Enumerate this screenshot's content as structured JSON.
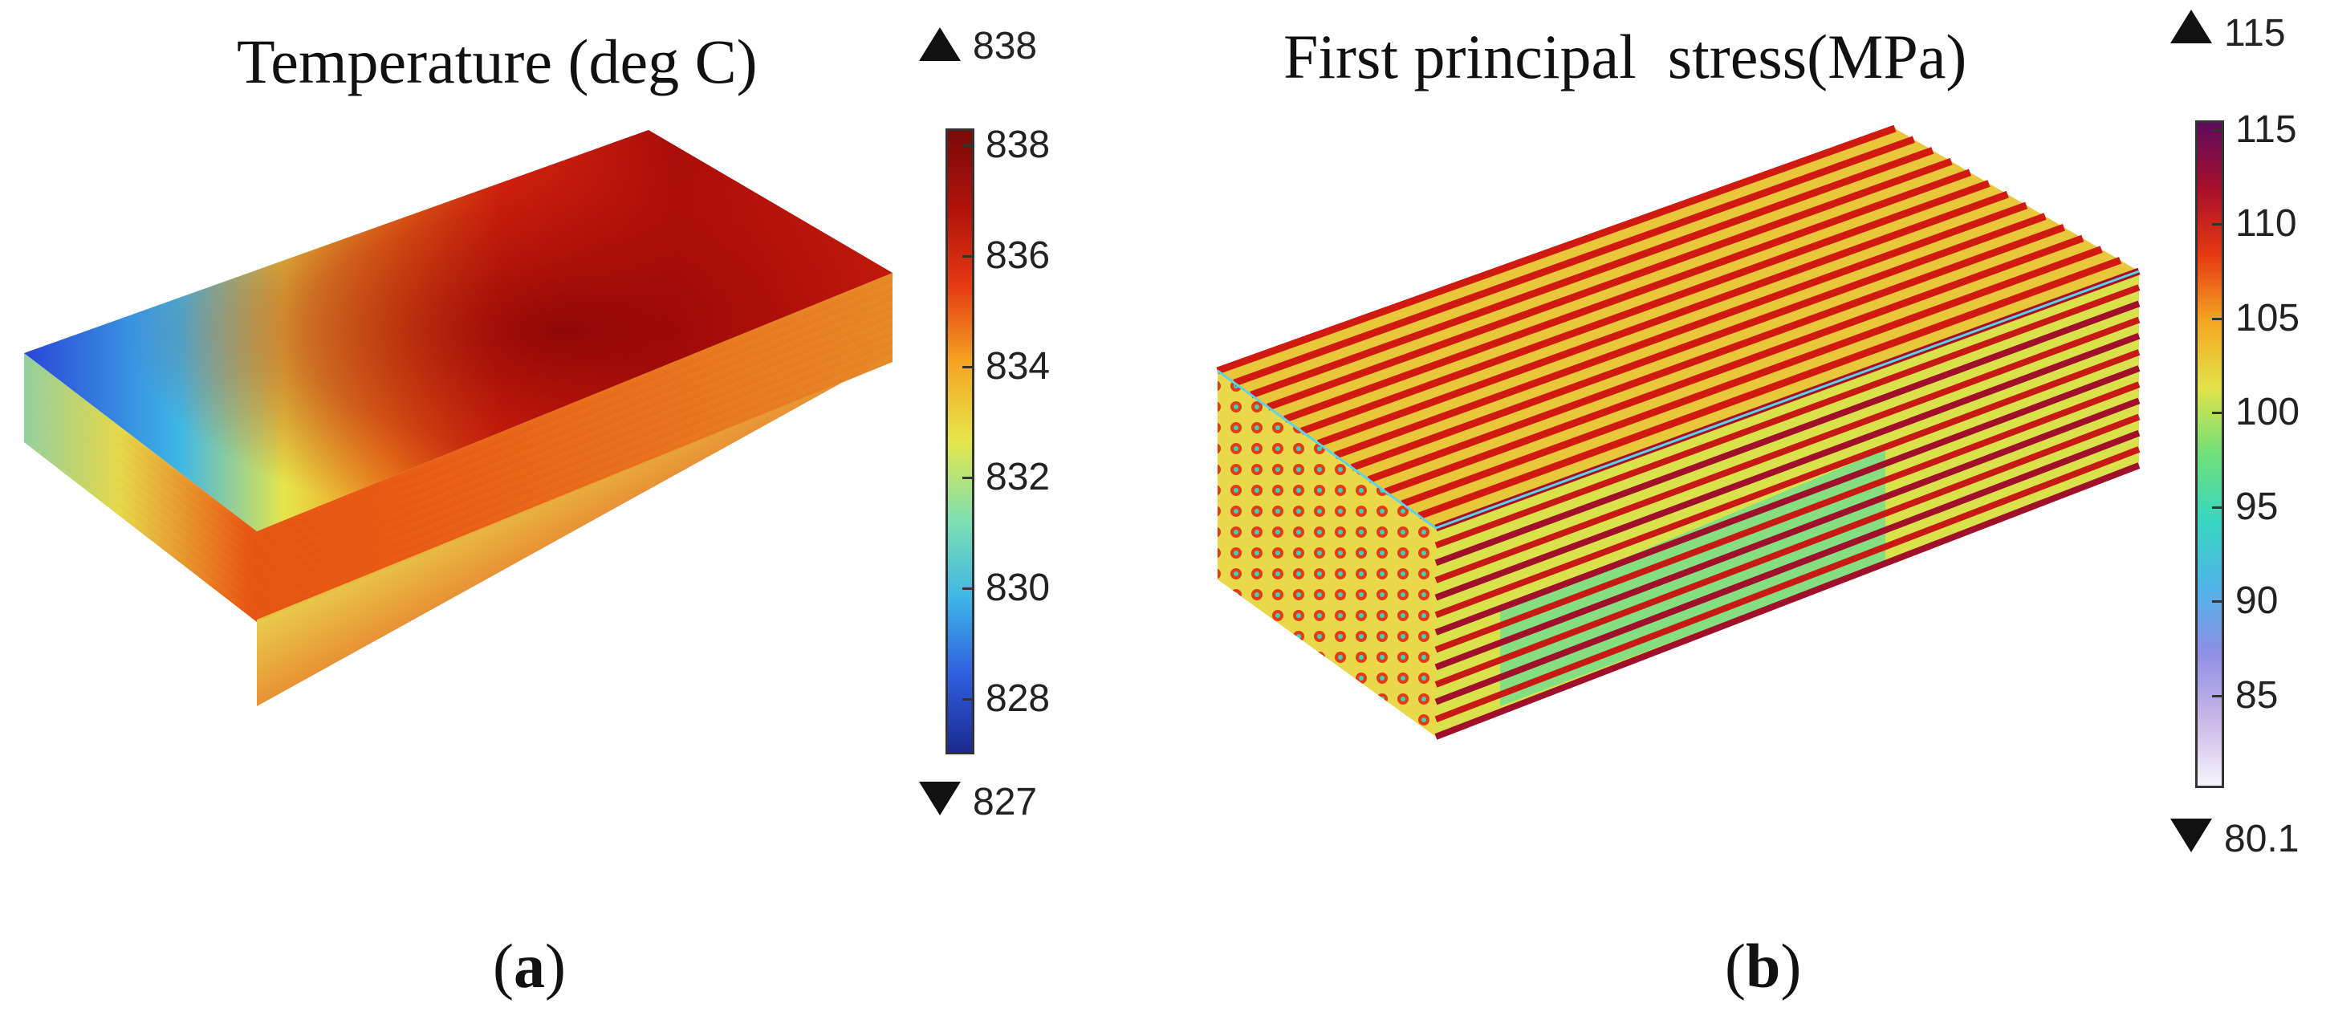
{
  "panel_a": {
    "title": "Temperature (deg C)",
    "label_open": "(",
    "label_letter": "a",
    "label_close": ")",
    "max_value": "838",
    "min_value": "827",
    "colorbar": {
      "min": 827,
      "max": 838.3,
      "colormap": [
        "#1a2a8f",
        "#2f5fe0",
        "#3fb7e6",
        "#7fe0b0",
        "#e6e64a",
        "#f5a623",
        "#e53a12",
        "#b0120a",
        "#7a0a0a"
      ],
      "ticks": [
        "838",
        "836",
        "834",
        "832",
        "830",
        "828"
      ]
    },
    "layers": 10
  },
  "panel_b": {
    "title": "First principal  stress(MPa)",
    "label_open": "(",
    "label_letter": "b",
    "label_close": ")",
    "max_value": "115",
    "min_value": "80.1",
    "colorbar": {
      "min": 80.1,
      "max": 115.5,
      "colormap": [
        "#f8f4fb",
        "#c9b7e8",
        "#8f8fe6",
        "#4fb4e8",
        "#38d6c0",
        "#6fe07a",
        "#e2e24a",
        "#f5a623",
        "#e53a12",
        "#a8102a",
        "#5e0a5e"
      ],
      "ticks": [
        "115",
        "110",
        "105",
        "100",
        "95",
        "90",
        "85"
      ]
    },
    "layers": 12
  }
}
